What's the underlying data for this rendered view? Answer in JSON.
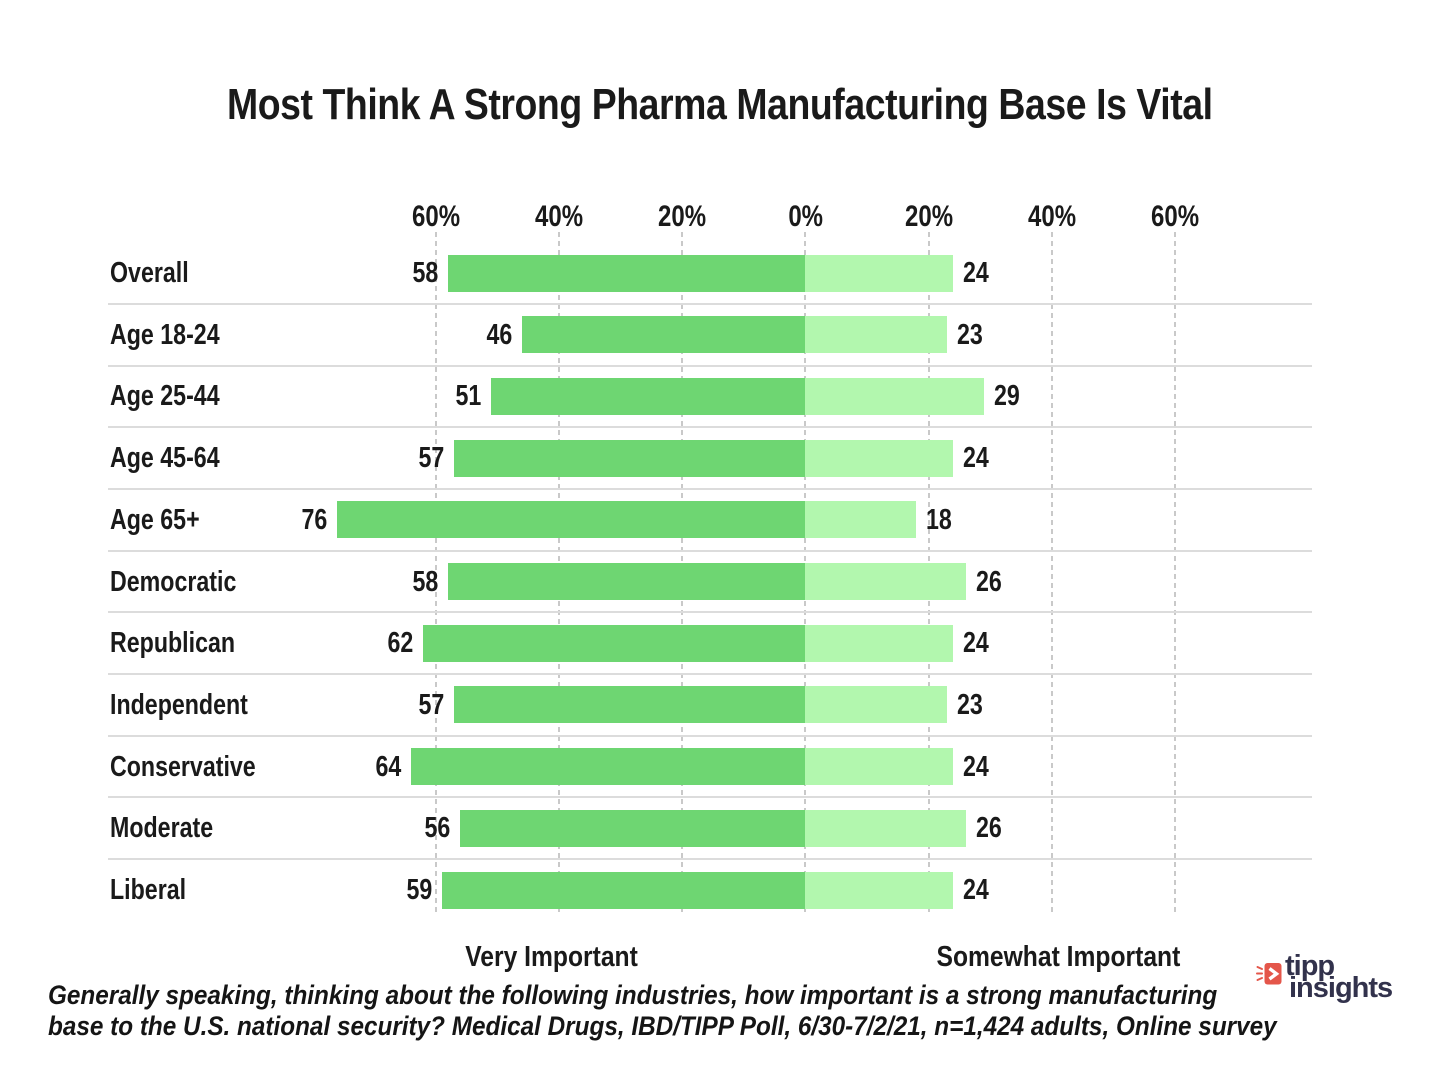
{
  "title": "Most Think A Strong Pharma Manufacturing Base Is Vital",
  "chart_data": {
    "type": "bar",
    "orientation": "horizontal-diverging",
    "title": "Most Think A Strong Pharma Manufacturing Base Is Vital",
    "categories": [
      "Overall",
      "Age 18-24",
      "Age 25-44",
      "Age 45-64",
      "Age 65+",
      "Democratic",
      "Republican",
      "Independent",
      "Conservative",
      "Moderate",
      "Liberal"
    ],
    "series": [
      {
        "name": "Very Important",
        "direction": "left",
        "color": "#6ed672",
        "values": [
          58,
          46,
          51,
          57,
          76,
          58,
          62,
          57,
          64,
          56,
          59
        ]
      },
      {
        "name": "Somewhat Important",
        "direction": "right",
        "color": "#b2f7ae",
        "values": [
          24,
          23,
          29,
          24,
          18,
          26,
          24,
          23,
          24,
          26,
          24
        ]
      }
    ],
    "axis_ticks": [
      "60%",
      "40%",
      "20%",
      "0%",
      "20%",
      "40%",
      "60%"
    ],
    "axis_range": [
      -60,
      60
    ],
    "tick_step": 20,
    "grid": "vertical-dashed",
    "value_labels": "outside-ends",
    "legend_position": "bottom"
  },
  "legend": {
    "left_label": "Very Important",
    "right_label": "Somewhat Important"
  },
  "footer": {
    "line1": "Generally speaking, thinking about the following industries, how important is a strong manufacturing",
    "line2": "base to the U.S. national security? Medical Drugs, IBD/TIPP Poll, 6/30-7/2/21, n=1,424 adults, Online survey"
  },
  "logo": {
    "word1": "tipp",
    "word2": "insights",
    "icon": "tipp-insights-megaphone-icon",
    "icon_color": "#e4564a",
    "text_color": "#32324c"
  },
  "colors": {
    "very_important_green": "#6ed672",
    "somewhat_important_green": "#b2f7ae",
    "gridline": "#c9c9c9",
    "row_separator": "#dcdcdc",
    "text": "#1a1a1a"
  }
}
